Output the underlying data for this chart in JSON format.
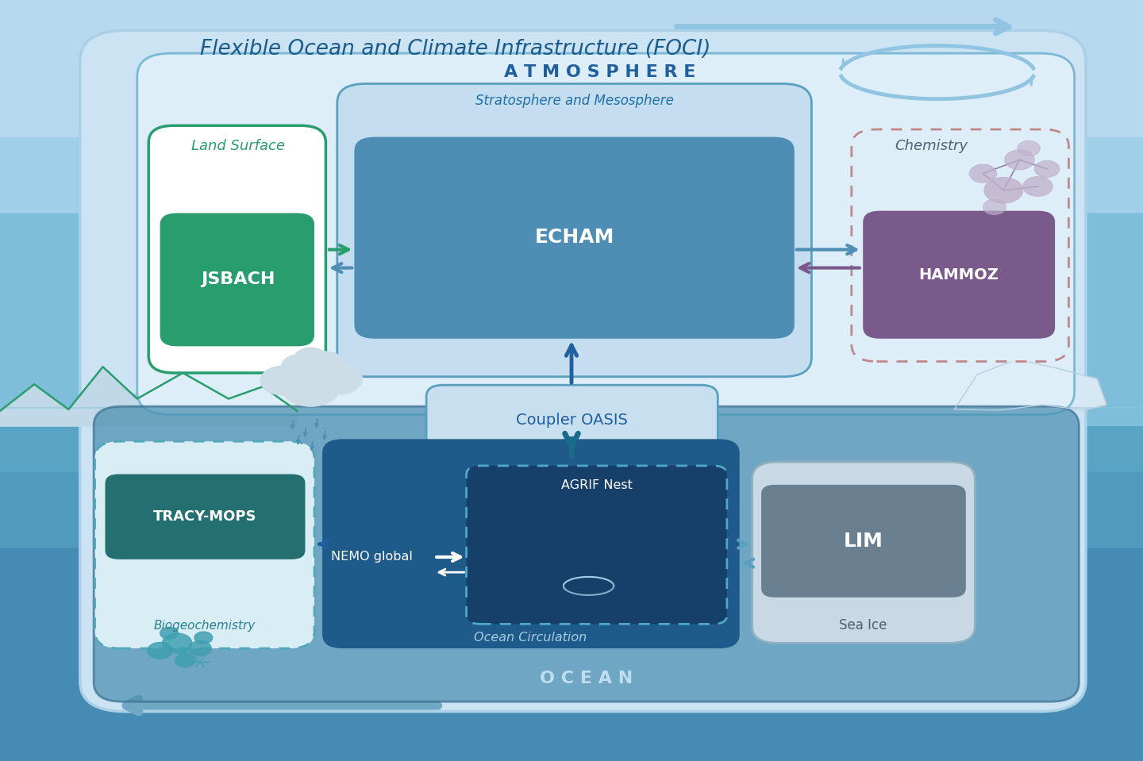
{
  "bg_color": "#b0d4ec",
  "title": "Flexible Ocean and Climate Infrastructure (FOCI)",
  "title_color": "#1a5b8a",
  "title_fontsize": 19,
  "atmo_label": "A T M O S P H E R E",
  "strat_label": "Stratosphere and Mesosphere",
  "echam_label": "ECHAM",
  "land_label": "Land Surface",
  "jsbach_label": "JSBACH",
  "chem_label": "Chemistry",
  "hammoz_label": "HAMMOZ",
  "coupler_label": "Coupler OASIS",
  "ocean_label": "O C E A N",
  "nemo_label": "Ocean Circulation",
  "nemo_global": "NEMO global",
  "agrif_label": "AGRIF Nest",
  "bio_label": "Biogeochemistry",
  "tracy_label": "TRACY-MOPS",
  "lim_label": "LIM",
  "seaice_label": "Sea Ice",
  "color_bg_sky": "#b8d8f0",
  "color_bg_outer": "#cce3f4",
  "color_bg_outer_edge": "#aad0e8",
  "color_atmo_box": "#ddeef8",
  "color_atmo_edge": "#7ab8d4",
  "color_strat_box": "#c4ddef",
  "color_strat_edge": "#5a9fc0",
  "color_echam": "#4e8db4",
  "color_jsbach": "#2a9d6e",
  "color_land_edge": "#2a9d6e",
  "color_hammoz": "#7a5a8a",
  "color_chem_edge": "#c08888",
  "color_coupler_box": "#c8dff0",
  "color_coupler_edge": "#5a9fc0",
  "color_ocean_bg": "#4a8fb0",
  "color_nemo": "#1e5a8a",
  "color_agrif": "#163f6a",
  "color_agrif_edge": "#50a8c8",
  "color_bio_edge": "#50a8b8",
  "color_tracy": "#247070",
  "color_lim_outer": "#c8d8e4",
  "color_lim_outer_edge": "#90b0c0",
  "color_lim": "#6a8090",
  "color_atmo_text": "#2060a0",
  "color_strat_text": "#2070a8",
  "color_land_text": "#2a9d6e",
  "color_ocean_text": "#c0ddf0",
  "color_bio_text": "#2a8090",
  "color_seaice_text": "#4a6070",
  "color_chem_text": "#506070",
  "color_arrow_light": "#90c4e0",
  "color_arrow_dark": "#1a4a7a",
  "color_arrow_green": "#2a9d6e",
  "color_cloud": "#ccdde8",
  "color_mol": "#c0b0cc",
  "color_mol_edge": "#9080a8"
}
